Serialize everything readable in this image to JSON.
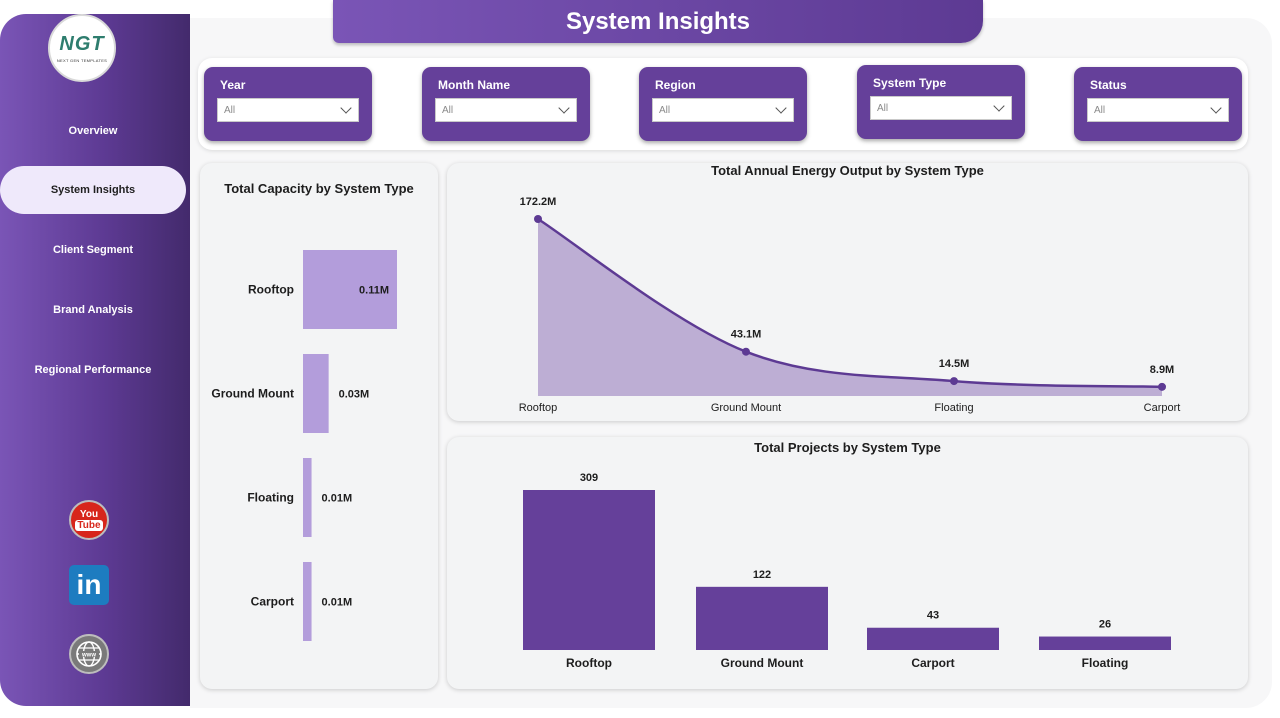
{
  "app": {
    "title": "System Insights",
    "logo_text": "NGT",
    "logo_subtext": "NEXT GEN TEMPLATES"
  },
  "sidebar": {
    "items": [
      {
        "label": "Overview"
      },
      {
        "label": "System Insights",
        "active": true
      },
      {
        "label": "Client Segment"
      },
      {
        "label": "Brand Analysis"
      },
      {
        "label": "Regional Performance"
      }
    ],
    "social": {
      "youtube_line1": "You",
      "youtube_line2": "Tube",
      "linkedin": "in",
      "web": "www"
    }
  },
  "filters": [
    {
      "label": "Year",
      "value": "All"
    },
    {
      "label": "Month Name",
      "value": "All"
    },
    {
      "label": "Region",
      "value": "All"
    },
    {
      "label": "System Type",
      "value": "All"
    },
    {
      "label": "Status",
      "value": "All"
    }
  ],
  "colors": {
    "sidebar": "#5d3a93",
    "accent": "#65409a",
    "bar_light": "#b39ddb",
    "area_fill": "#bdaed4",
    "line": "#5d3a93"
  },
  "chart_data": [
    {
      "type": "bar",
      "orientation": "horizontal",
      "title": "Total Capacity by System Type",
      "categories": [
        "Rooftop",
        "Ground Mount",
        "Floating",
        "Carport"
      ],
      "values": [
        0.11,
        0.03,
        0.01,
        0.01
      ],
      "value_labels": [
        "0.11M",
        "0.03M",
        "0.01M",
        "0.01M"
      ],
      "unit": "M"
    },
    {
      "type": "area",
      "title": "Total Annual Energy Output by System Type",
      "categories": [
        "Rooftop",
        "Ground Mount",
        "Floating",
        "Carport"
      ],
      "values": [
        172.2,
        43.1,
        14.5,
        8.9
      ],
      "value_labels": [
        "172.2M",
        "43.1M",
        "14.5M",
        "8.9M"
      ],
      "unit": "M"
    },
    {
      "type": "bar",
      "title": "Total Projects by System Type",
      "categories": [
        "Rooftop",
        "Ground Mount",
        "Carport",
        "Floating"
      ],
      "values": [
        309,
        122,
        43,
        26
      ],
      "value_labels": [
        "309",
        "122",
        "43",
        "26"
      ]
    }
  ]
}
